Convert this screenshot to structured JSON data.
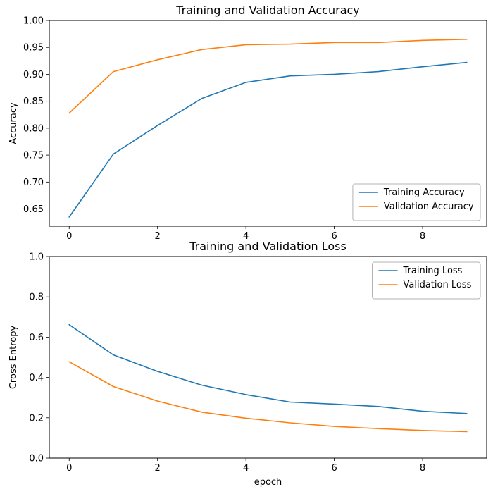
{
  "figure": {
    "background": "#ffffff"
  },
  "chart_data": [
    {
      "type": "line",
      "title": "Training and Validation Accuracy",
      "xlabel": "",
      "ylabel": "Accuracy",
      "x": [
        0,
        1,
        2,
        3,
        4,
        5,
        6,
        7,
        8,
        9
      ],
      "series": [
        {
          "name": "Training Accuracy",
          "color": "#1f77b4",
          "values": [
            0.635,
            0.752,
            0.805,
            0.855,
            0.885,
            0.897,
            0.9,
            0.905,
            0.914,
            0.922
          ]
        },
        {
          "name": "Validation Accuracy",
          "color": "#ff7f0e",
          "values": [
            0.828,
            0.905,
            0.927,
            0.946,
            0.955,
            0.956,
            0.959,
            0.959,
            0.963,
            0.965
          ]
        }
      ],
      "xlim": [
        -0.45,
        9.45
      ],
      "ylim": [
        0.618,
        1.0
      ],
      "xticks": [
        0,
        2,
        4,
        6,
        8
      ],
      "xtick_labels": [
        "0",
        "2",
        "4",
        "6",
        "8"
      ],
      "yticks": [
        0.65,
        0.7,
        0.75,
        0.8,
        0.85,
        0.9,
        0.95,
        1.0
      ],
      "ytick_labels": [
        "0.65",
        "0.70",
        "0.75",
        "0.80",
        "0.85",
        "0.90",
        "0.95",
        "1.00"
      ],
      "grid": false,
      "legend": {
        "position": "lower right",
        "entries": [
          "Training Accuracy",
          "Validation Accuracy"
        ]
      }
    },
    {
      "type": "line",
      "title": "Training and Validation Loss",
      "xlabel": "epoch",
      "ylabel": "Cross Entropy",
      "x": [
        0,
        1,
        2,
        3,
        4,
        5,
        6,
        7,
        8,
        9
      ],
      "series": [
        {
          "name": "Training Loss",
          "color": "#1f77b4",
          "values": [
            0.662,
            0.512,
            0.43,
            0.362,
            0.315,
            0.278,
            0.268,
            0.256,
            0.232,
            0.221
          ]
        },
        {
          "name": "Validation Loss",
          "color": "#ff7f0e",
          "values": [
            0.478,
            0.355,
            0.283,
            0.228,
            0.198,
            0.175,
            0.157,
            0.146,
            0.137,
            0.131
          ]
        }
      ],
      "xlim": [
        -0.45,
        9.45
      ],
      "ylim": [
        0.0,
        1.0
      ],
      "xticks": [
        0,
        2,
        4,
        6,
        8
      ],
      "xtick_labels": [
        "0",
        "2",
        "4",
        "6",
        "8"
      ],
      "yticks": [
        0.0,
        0.2,
        0.4,
        0.6,
        0.8,
        1.0
      ],
      "ytick_labels": [
        "0.0",
        "0.2",
        "0.4",
        "0.6",
        "0.8",
        "1.0"
      ],
      "grid": false,
      "legend": {
        "position": "upper right",
        "entries": [
          "Training Loss",
          "Validation Loss"
        ]
      }
    }
  ]
}
